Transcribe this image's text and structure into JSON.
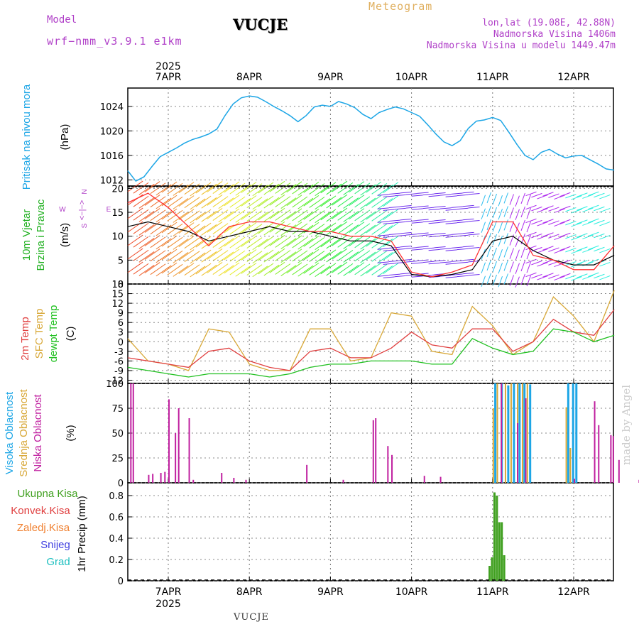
{
  "header": {
    "model_label": "Model",
    "model_name": "wrf−nmm_v3.9.1  e1km",
    "station": "VUCJE",
    "meteogram": "Meteogram",
    "lonlat": "lon,lat (19.08E, 42.88N)",
    "elevation": "Nadmorska Visina 1406m",
    "model_elevation": "Nadmorska Visina u modelu 1449.47m"
  },
  "footer": {
    "station": "VUCJE",
    "credit": "made by Angel"
  },
  "time_axis": {
    "year": "2025",
    "dates": [
      "7APR",
      "8APR",
      "9APR",
      "10APR",
      "11APR",
      "12APR"
    ]
  },
  "colors": {
    "pressure": "#1da6e6",
    "temp2m": "#e04040",
    "sfc_temp": "#d8a838",
    "dewpt": "#20c020",
    "high_cloud": "#1da6e6",
    "mid_cloud": "#d8a838",
    "low_cloud": "#c020a0",
    "total_precip": "#40a020",
    "wind_speed": "#000000",
    "gust": "#ff3030",
    "label_wind": "#20b020",
    "label_dir": "#b040c8"
  },
  "chart_data": [
    {
      "type": "line",
      "panel": "pressure",
      "ylabel_title": "Pritisak na nivou mora",
      "ylabel_unit": "(hPa)",
      "ylim": [
        1011,
        1027
      ],
      "yticks": [
        "1012",
        "1016",
        "1020",
        "1024"
      ],
      "series": [
        {
          "x": [
            0,
            0.1,
            0.2,
            0.3,
            0.4,
            0.5,
            0.6,
            0.7,
            0.8,
            0.9,
            1.0,
            1.1,
            1.2,
            1.3,
            1.4,
            1.5,
            1.6,
            1.7,
            1.8,
            1.9,
            2.0,
            2.1,
            2.2,
            2.3,
            2.4,
            2.5,
            2.6,
            2.7,
            2.8,
            2.9,
            3.0,
            3.1,
            3.2,
            3.3,
            3.4,
            3.5,
            3.6,
            3.7,
            3.8,
            3.9,
            4.0,
            4.1,
            4.2,
            4.3,
            4.4,
            4.5,
            4.6,
            4.7,
            4.8,
            4.9,
            5.0,
            5.1,
            5.2,
            5.3,
            5.4,
            5.5,
            5.6,
            5.7,
            5.8,
            5.9,
            6.0
          ],
          "values": [
            1013.5,
            1011.8,
            1012.5,
            1014.2,
            1015.8,
            1016.5,
            1017.2,
            1018.0,
            1018.6,
            1019.0,
            1019.5,
            1020.3,
            1022.5,
            1024.4,
            1025.4,
            1025.7,
            1025.5,
            1024.8,
            1024.0,
            1023.3,
            1022.5,
            1021.5,
            1022.5,
            1023.9,
            1024.2,
            1024.0,
            1024.8,
            1024.4,
            1023.8,
            1022.7,
            1022.0,
            1023.0,
            1023.5,
            1023.9,
            1023.6,
            1023.0,
            1022.4,
            1021.0,
            1019.5,
            1018.2,
            1017.6,
            1018.4,
            1020.4,
            1021.6,
            1021.8,
            1022.2,
            1021.7,
            1019.8,
            1017.8,
            1016.0,
            1015.3,
            1016.5,
            1017.0,
            1016.2,
            1015.6,
            1015.9,
            1016.0,
            1015.3,
            1014.6,
            1013.8,
            1013.6
          ]
        }
      ]
    },
    {
      "type": "line",
      "panel": "wind",
      "ylabel_title_1": "10m Vjetar",
      "ylabel_title_2": "Brzina i Pravac",
      "ylabel_unit": "(m/s)",
      "direction_legend": [
        "W",
        "<−|−>",
        "E",
        "S",
        "N"
      ],
      "ylim": [
        0,
        20.5
      ],
      "yticks": [
        "0",
        "5",
        "10",
        "15",
        "20"
      ],
      "series": [
        {
          "name": "speed",
          "x": [
            0,
            0.25,
            0.5,
            0.75,
            1.0,
            1.25,
            1.5,
            1.75,
            2.0,
            2.25,
            2.5,
            2.75,
            3.0,
            3.25,
            3.5,
            3.75,
            4.0,
            4.25,
            4.5,
            4.75,
            5.0,
            5.25,
            5.5,
            5.75,
            6.0
          ],
          "values": [
            12,
            13,
            12,
            11,
            9,
            10,
            11,
            12,
            11,
            11,
            10,
            9,
            9,
            8,
            2,
            1.5,
            2,
            3,
            9,
            10,
            7,
            5,
            4,
            4,
            6
          ]
        },
        {
          "name": "gust",
          "x": [
            0,
            0.25,
            0.5,
            0.75,
            1.0,
            1.25,
            1.5,
            1.75,
            2.0,
            2.25,
            2.5,
            2.75,
            3.0,
            3.25,
            3.5,
            3.75,
            4.0,
            4.25,
            4.5,
            4.75,
            5.0,
            5.25,
            5.5,
            5.75,
            6.0
          ],
          "values": [
            17,
            19,
            16,
            12,
            8,
            12,
            13,
            13,
            12,
            11,
            11,
            10,
            10,
            9,
            2.5,
            1.5,
            2.5,
            4,
            13,
            13,
            6,
            5,
            3,
            3,
            8
          ]
        }
      ]
    },
    {
      "type": "line",
      "panel": "temperature",
      "ylabel_title_1": "2m Temp",
      "ylabel_title_2": "SFC Temp",
      "ylabel_title_3": "dewpt Temp",
      "ylabel_unit": "(C)",
      "ylim": [
        -13,
        18
      ],
      "yticks": [
        "-12",
        "-9",
        "-6",
        "-3",
        "0",
        "3",
        "6",
        "9",
        "12",
        "15",
        "18"
      ],
      "series": [
        {
          "name": "2m",
          "x": [
            0,
            0.25,
            0.5,
            0.75,
            1.0,
            1.25,
            1.5,
            1.75,
            2.0,
            2.25,
            2.5,
            2.75,
            3.0,
            3.25,
            3.5,
            3.75,
            4.0,
            4.25,
            4.5,
            4.75,
            5.0,
            5.25,
            5.5,
            5.75,
            6.0
          ],
          "values": [
            -5,
            -6,
            -7,
            -8,
            -3,
            -2,
            -6,
            -8,
            -9,
            -3,
            -2,
            -5,
            -5,
            -2,
            3,
            -1,
            -2,
            4,
            4,
            -3,
            0,
            7,
            3,
            2,
            10
          ]
        },
        {
          "name": "sfc",
          "x": [
            0,
            0.25,
            0.5,
            0.75,
            1.0,
            1.25,
            1.5,
            1.75,
            2.0,
            2.25,
            2.5,
            2.75,
            3.0,
            3.25,
            3.5,
            3.75,
            4.0,
            4.25,
            4.5,
            4.75,
            5.0,
            5.25,
            5.5,
            5.75,
            6.0
          ],
          "values": [
            1,
            -6,
            -7,
            -9,
            4,
            3,
            -7,
            -9,
            -9,
            4,
            4,
            -6,
            -5,
            9,
            8,
            -3,
            -4,
            11,
            5,
            -4,
            0,
            14,
            8,
            0,
            16
          ]
        },
        {
          "name": "dewpt",
          "x": [
            0,
            0.25,
            0.5,
            0.75,
            1.0,
            1.25,
            1.5,
            1.75,
            2.0,
            2.25,
            2.5,
            2.75,
            3.0,
            3.25,
            3.5,
            3.75,
            4.0,
            4.25,
            4.5,
            4.75,
            5.0,
            5.25,
            5.5,
            5.75,
            6.0
          ],
          "values": [
            -8,
            -9,
            -10,
            -11,
            -10,
            -10,
            -10,
            -11,
            -10,
            -8,
            -7,
            -7,
            -6,
            -6,
            -6,
            -7,
            -7,
            1,
            -2,
            -4,
            -3,
            4,
            3,
            0,
            2
          ]
        }
      ]
    },
    {
      "type": "bar",
      "panel": "clouds",
      "ylabel_title_1": "Visoka Oblacnost",
      "ylabel_title_2": "Srednja Oblacnost",
      "ylabel_title_3": "Niska Oblacnost",
      "ylabel_unit": "(%)",
      "ylim": [
        0,
        100
      ],
      "yticks": [
        "0",
        "25",
        "50",
        "75",
        "100"
      ],
      "series": [
        {
          "name": "low",
          "x": [
            0.03,
            0.06,
            0.25,
            0.3,
            0.4,
            0.45,
            0.5,
            0.58,
            0.62,
            0.75,
            0.8,
            1.15,
            1.3,
            1.45,
            2.2,
            2.65,
            3.02,
            3.05,
            3.2,
            3.25,
            3.65,
            3.85,
            4.6,
            4.8,
            4.9,
            5.5,
            5.75,
            5.8,
            5.95,
            5.98,
            6.05,
            6.3,
            6.62,
            6.65
          ],
          "values": [
            100,
            100,
            8,
            9,
            10,
            11,
            84,
            50,
            75,
            65,
            3,
            10,
            5,
            3,
            18,
            3,
            63,
            65,
            37,
            28,
            7,
            6,
            100,
            60,
            85,
            4,
            82,
            58,
            48,
            47,
            23,
            3,
            9,
            24
          ]
        },
        {
          "name": "mid",
          "x": [
            4.5,
            4.55,
            4.65,
            4.72,
            4.8,
            4.86,
            4.92,
            5.4,
            5.45
          ],
          "values": [
            75,
            100,
            100,
            100,
            100,
            100,
            100,
            76,
            35
          ]
        },
        {
          "name": "high",
          "x": [
            4.52,
            4.6,
            4.68,
            4.75,
            4.82,
            4.88,
            4.95,
            5.42,
            5.48,
            5.52
          ],
          "values": [
            100,
            100,
            98,
            100,
            100,
            100,
            99,
            100,
            100,
            100
          ]
        }
      ]
    },
    {
      "type": "bar",
      "panel": "precip",
      "ylabel_title": "1hr Precip",
      "ylabel_unit": "(mm)",
      "legend": [
        "Ukupna  Kisa",
        "Konvek.Kisa",
        "Zaledj.Kisa",
        "Snijeg",
        "Grad"
      ],
      "ylim": [
        0,
        0.92
      ],
      "yticks": [
        "0",
        "0.2",
        "0.4",
        "0.6",
        "0.8"
      ],
      "series": [
        {
          "name": "total",
          "x": [
            4.45,
            4.48,
            4.51,
            4.54,
            4.57,
            4.6,
            4.63
          ],
          "values": [
            0.14,
            0.22,
            0.83,
            0.8,
            0.55,
            0.55,
            0.24
          ]
        }
      ]
    }
  ]
}
